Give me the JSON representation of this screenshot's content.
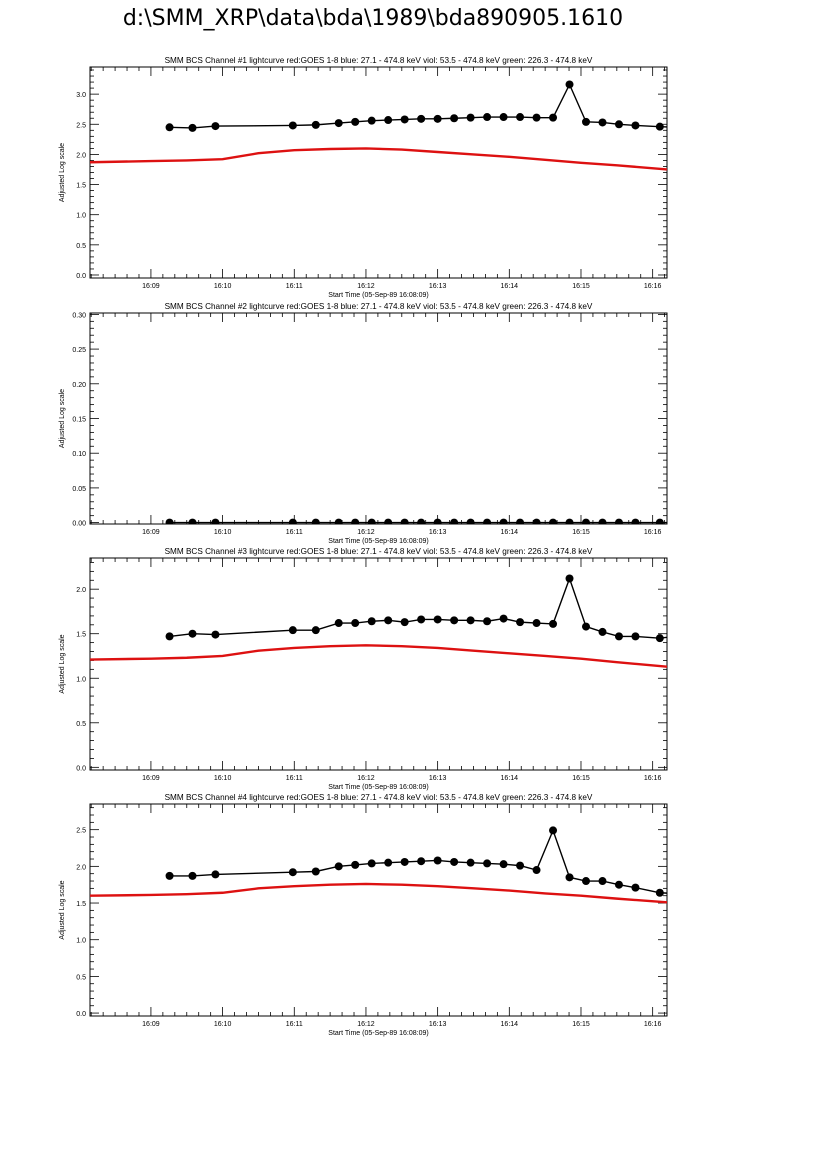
{
  "page": {
    "title": "d:\\SMM_XRP\\data\\bda\\1989\\bda890905.1610"
  },
  "colors": {
    "goes": "#dd1111",
    "bcs": "#000000",
    "axis": "#000000"
  },
  "chart_data": [
    {
      "type": "line",
      "title": "SMM BCS Channel #1 lightcurve  red:GOES 1-8  blue: 27.1 - 474.8 keV  viol: 53.5 - 474.8 keV  green: 226.3 - 474.8 keV",
      "xlabel": "Start Time (05-Sep-89 16:08:09)",
      "ylabel": "Adjusted Log scale",
      "xlim": [
        8.15,
        16.2
      ],
      "ylim": [
        -0.05,
        3.45
      ],
      "x_ticks": [
        9,
        10,
        11,
        12,
        13,
        14,
        15,
        16
      ],
      "x_tick_labels": [
        "16:09",
        "16:10",
        "16:11",
        "16:12",
        "16:13",
        "16:14",
        "16:15",
        "16:16"
      ],
      "y_ticks": [
        0.0,
        0.5,
        1.0,
        1.5,
        2.0,
        2.5,
        3.0
      ],
      "y_tick_labels": [
        "0.0",
        "0.5",
        "1.0",
        "1.5",
        "2.0",
        "2.5",
        "3.0"
      ],
      "series": [
        {
          "values_x": [
            8.15,
            9.0,
            9.5,
            10.0,
            10.5,
            11.0,
            11.5,
            12.0,
            12.5,
            13.0,
            13.5,
            14.0,
            14.5,
            15.0,
            15.5,
            16.2
          ],
          "values_y": [
            1.87,
            1.89,
            1.9,
            1.92,
            2.02,
            2.07,
            2.09,
            2.1,
            2.08,
            2.04,
            2.0,
            1.96,
            1.91,
            1.86,
            1.82,
            1.75
          ],
          "style": "goes"
        },
        {
          "values_x": [
            9.26,
            9.58,
            9.9,
            10.98,
            11.3,
            11.62,
            11.85,
            12.08,
            12.31,
            12.54,
            12.77,
            13.0,
            13.23,
            13.46,
            13.69,
            13.92,
            14.15,
            14.38,
            14.61,
            14.84,
            15.07,
            15.3,
            15.53,
            15.76,
            16.1,
            16.3
          ],
          "values_y": [
            2.45,
            2.44,
            2.47,
            2.48,
            2.49,
            2.52,
            2.54,
            2.56,
            2.57,
            2.58,
            2.59,
            2.59,
            2.6,
            2.61,
            2.62,
            2.62,
            2.62,
            2.61,
            2.61,
            3.16,
            2.54,
            2.53,
            2.5,
            2.48,
            2.46,
            2.45
          ],
          "style": "bcs"
        }
      ]
    },
    {
      "type": "line",
      "title": "SMM BCS Channel #2 lightcurve  red:GOES 1-8  blue: 27.1 - 474.8 keV  viol: 53.5 - 474.8 keV  green: 226.3 - 474.8 keV",
      "xlabel": "Start Time (05-Sep-89 16:08:09)",
      "ylabel": "Adjusted Log scale",
      "xlim": [
        8.15,
        16.2
      ],
      "ylim": [
        -0.002,
        0.302
      ],
      "x_ticks": [
        9,
        10,
        11,
        12,
        13,
        14,
        15,
        16
      ],
      "x_tick_labels": [
        "16:09",
        "16:10",
        "16:11",
        "16:12",
        "16:13",
        "16:14",
        "16:15",
        "16:16"
      ],
      "y_ticks": [
        0.0,
        0.05,
        0.1,
        0.15,
        0.2,
        0.25,
        0.3
      ],
      "y_tick_labels": [
        "0.00",
        "0.05",
        "0.10",
        "0.15",
        "0.20",
        "0.25",
        "0.30"
      ],
      "series": [
        {
          "values_x": [
            9.26,
            9.58,
            9.9,
            10.98,
            11.3,
            11.62,
            11.85,
            12.08,
            12.31,
            12.54,
            12.77,
            13.0,
            13.23,
            13.46,
            13.69,
            13.92,
            14.15,
            14.38,
            14.61,
            14.84,
            15.07,
            15.3,
            15.53,
            15.76,
            16.1,
            16.3
          ],
          "values_y": [
            0,
            0,
            0,
            0,
            0,
            0,
            0,
            0,
            0,
            0,
            0,
            0,
            0,
            0,
            0,
            0,
            0,
            0,
            0,
            0,
            0,
            0,
            0,
            0,
            0,
            0
          ],
          "style": "bcs"
        }
      ]
    },
    {
      "type": "line",
      "title": "SMM BCS Channel #3 lightcurve  red:GOES 1-8  blue: 27.1 - 474.8 keV  viol: 53.5 - 474.8 keV  green: 226.3 - 474.8 keV",
      "xlabel": "Start Time (05-Sep-89 16:08:09)",
      "ylabel": "Adjusted Log scale",
      "xlim": [
        8.15,
        16.2
      ],
      "ylim": [
        -0.03,
        2.35
      ],
      "x_ticks": [
        9,
        10,
        11,
        12,
        13,
        14,
        15,
        16
      ],
      "x_tick_labels": [
        "16:09",
        "16:10",
        "16:11",
        "16:12",
        "16:13",
        "16:14",
        "16:15",
        "16:16"
      ],
      "y_ticks": [
        0.0,
        0.5,
        1.0,
        1.5,
        2.0
      ],
      "y_tick_labels": [
        "0.0",
        "0.5",
        "1.0",
        "1.5",
        "2.0"
      ],
      "series": [
        {
          "values_x": [
            8.15,
            9.0,
            9.5,
            10.0,
            10.5,
            11.0,
            11.5,
            12.0,
            12.5,
            13.0,
            13.5,
            14.0,
            14.5,
            15.0,
            15.5,
            16.2
          ],
          "values_y": [
            1.21,
            1.22,
            1.23,
            1.25,
            1.31,
            1.34,
            1.36,
            1.37,
            1.36,
            1.34,
            1.31,
            1.28,
            1.25,
            1.22,
            1.18,
            1.13
          ],
          "style": "goes"
        },
        {
          "values_x": [
            9.26,
            9.58,
            9.9,
            10.98,
            11.3,
            11.62,
            11.85,
            12.08,
            12.31,
            12.54,
            12.77,
            13.0,
            13.23,
            13.46,
            13.69,
            13.92,
            14.15,
            14.38,
            14.61,
            14.84,
            15.07,
            15.3,
            15.53,
            15.76,
            16.1,
            16.3
          ],
          "values_y": [
            1.47,
            1.5,
            1.49,
            1.54,
            1.54,
            1.62,
            1.62,
            1.64,
            1.65,
            1.63,
            1.66,
            1.66,
            1.65,
            1.65,
            1.64,
            1.67,
            1.63,
            1.62,
            1.61,
            2.12,
            1.58,
            1.52,
            1.47,
            1.47,
            1.45,
            1.47
          ],
          "style": "bcs"
        }
      ]
    },
    {
      "type": "line",
      "title": "SMM BCS Channel #4 lightcurve  red:GOES 1-8  blue: 27.1 - 474.8 keV  viol: 53.5 - 474.8 keV  green: 226.3 - 474.8 keV",
      "xlabel": "Start Time (05-Sep-89 16:08:09)",
      "ylabel": "Adjusted Log scale",
      "xlim": [
        8.15,
        16.2
      ],
      "ylim": [
        -0.04,
        2.85
      ],
      "x_ticks": [
        9,
        10,
        11,
        12,
        13,
        14,
        15,
        16
      ],
      "x_tick_labels": [
        "16:09",
        "16:10",
        "16:11",
        "16:12",
        "16:13",
        "16:14",
        "16:15",
        "16:16"
      ],
      "y_ticks": [
        0.0,
        0.5,
        1.0,
        1.5,
        2.0,
        2.5
      ],
      "y_tick_labels": [
        "0.0",
        "0.5",
        "1.0",
        "1.5",
        "2.0",
        "2.5"
      ],
      "series": [
        {
          "values_x": [
            8.15,
            9.0,
            9.5,
            10.0,
            10.5,
            11.0,
            11.5,
            12.0,
            12.5,
            13.0,
            13.5,
            14.0,
            14.5,
            15.0,
            15.5,
            16.2
          ],
          "values_y": [
            1.6,
            1.61,
            1.62,
            1.64,
            1.7,
            1.73,
            1.75,
            1.76,
            1.75,
            1.73,
            1.7,
            1.67,
            1.63,
            1.6,
            1.56,
            1.51
          ],
          "style": "goes"
        },
        {
          "values_x": [
            9.26,
            9.58,
            9.9,
            10.98,
            11.3,
            11.62,
            11.85,
            12.08,
            12.31,
            12.54,
            12.77,
            13.0,
            13.23,
            13.46,
            13.69,
            13.92,
            14.15,
            14.38,
            14.61,
            14.84,
            15.07,
            15.3,
            15.53,
            15.76,
            16.1,
            16.3
          ],
          "values_y": [
            1.87,
            1.87,
            1.89,
            1.92,
            1.93,
            2.0,
            2.02,
            2.04,
            2.05,
            2.06,
            2.07,
            2.08,
            2.06,
            2.05,
            2.04,
            2.03,
            2.01,
            1.95,
            2.49,
            1.85,
            1.8,
            1.8,
            1.75,
            1.71,
            1.64,
            1.63
          ],
          "style": "bcs"
        }
      ]
    }
  ]
}
